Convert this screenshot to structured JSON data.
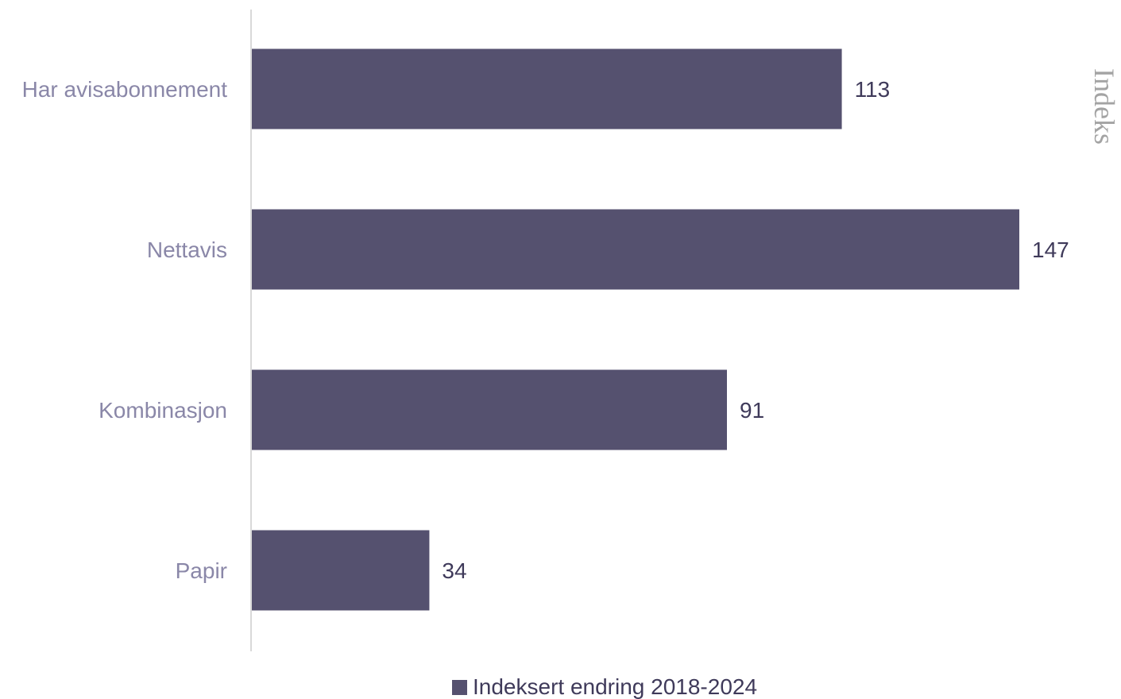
{
  "chart_data": {
    "type": "bar",
    "orientation": "horizontal",
    "categories": [
      "Har avisabonnement",
      "Nettavis",
      "Kombinasjon",
      "Papir"
    ],
    "series": [
      {
        "name": "Indeksert endring 2018-2024",
        "values": [
          113,
          147,
          91,
          34
        ],
        "color": "#55516f"
      }
    ],
    "side_title": "Indeks",
    "xlim": [
      0,
      147
    ],
    "data_labels": true,
    "grid": false,
    "legend_position": "bottom"
  },
  "colors": {
    "bar": "#55516f",
    "category_text": "#8a87a8",
    "value_text": "#3f3a5a",
    "axis_line": "#d9d9d9",
    "side_title": "#a3a3a3"
  }
}
